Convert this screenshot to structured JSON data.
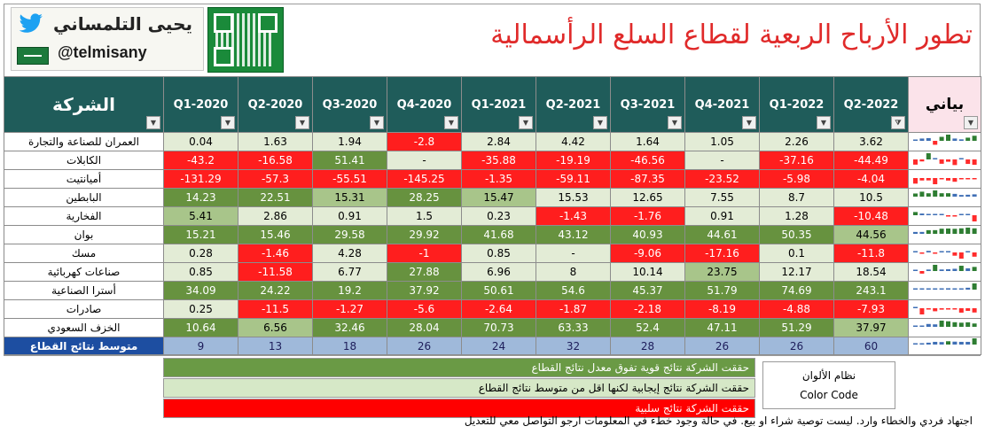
{
  "branding": {
    "author_name": "يحيى التلمساني",
    "handle": "@telmisany"
  },
  "title": "تطور الأرباح الربعية لقطاع السلع الرأسمالية",
  "table": {
    "company_header": "الشركة",
    "chart_header": "بياني",
    "quarters": [
      "Q1-2020",
      "Q2-2020",
      "Q3-2020",
      "Q4-2020",
      "Q1-2021",
      "Q2-2021",
      "Q3-2021",
      "Q4-2021",
      "Q1-2022",
      "Q2-2022"
    ],
    "rows": [
      {
        "name": "العمران للصناعة والتجارة",
        "values": [
          "0.04",
          "1.63",
          "1.94",
          "-2.8",
          "2.84",
          "4.42",
          "1.64",
          "1.05",
          "2.26",
          "3.62"
        ]
      },
      {
        "name": "الكابلات",
        "values": [
          "-43.2",
          "-16.58",
          "51.41",
          "-",
          "-35.88",
          "-19.19",
          "-46.56",
          "-",
          "-37.16",
          "-44.49"
        ]
      },
      {
        "name": "أميانتيت",
        "values": [
          "-131.29",
          "-57.3",
          "-55.51",
          "-145.25",
          "-1.35",
          "-59.11",
          "-87.35",
          "-23.52",
          "-5.98",
          "-4.04"
        ]
      },
      {
        "name": "البابطين",
        "values": [
          "14.23",
          "22.51",
          "15.31",
          "28.25",
          "15.47",
          "15.53",
          "12.65",
          "7.55",
          "8.7",
          "10.5"
        ]
      },
      {
        "name": "الفخارية",
        "values": [
          "5.41",
          "2.86",
          "0.91",
          "1.5",
          "0.23",
          "-1.43",
          "-1.76",
          "0.91",
          "1.28",
          "-10.48"
        ]
      },
      {
        "name": "بوان",
        "values": [
          "15.21",
          "15.46",
          "29.58",
          "29.92",
          "41.68",
          "43.12",
          "40.93",
          "44.61",
          "50.35",
          "44.56"
        ]
      },
      {
        "name": "مسك",
        "values": [
          "0.28",
          "-1.46",
          "4.28",
          "-1",
          "0.85",
          "-",
          "-9.06",
          "-17.16",
          "0.1",
          "-11.8"
        ]
      },
      {
        "name": "صناعات كهربائية",
        "values": [
          "0.85",
          "-11.58",
          "6.77",
          "27.88",
          "6.96",
          "8",
          "10.14",
          "23.75",
          "12.17",
          "18.54"
        ]
      },
      {
        "name": "أسترا الصناعية",
        "values": [
          "34.09",
          "24.22",
          "19.2",
          "37.92",
          "50.61",
          "54.6",
          "45.37",
          "51.79",
          "74.69",
          "243.1"
        ]
      },
      {
        "name": "صادرات",
        "values": [
          "0.25",
          "-11.5",
          "-1.27",
          "-5.6",
          "-2.64",
          "-1.87",
          "-2.18",
          "-8.19",
          "-4.88",
          "-7.93"
        ]
      },
      {
        "name": "الخزف السعودي",
        "values": [
          "10.64",
          "6.56",
          "32.46",
          "28.04",
          "70.73",
          "63.33",
          "52.4",
          "47.11",
          "51.29",
          "37.97"
        ]
      }
    ],
    "average": {
      "name": "متوسط نتائج القطاع",
      "values": [
        "9",
        "13",
        "18",
        "26",
        "24",
        "32",
        "28",
        "26",
        "26",
        "60"
      ]
    }
  },
  "legend": {
    "title_ar": "نظام الألوان",
    "title_en": "Color Code",
    "strong": "حققت الشركة نتائج قوية تفوق معدل نتائج القطاع",
    "positive": "حققت الشركة نتائج إيجابية لكنها اقل من متوسط نتائج القطاع",
    "negative": "حققت الشركة نتائج سلبية"
  },
  "footer": "اجتهاد فردي والخطاء وارد. ليست توصية شراء او بيع. في حالة وجود خطء في المعلومات ارجو التواصل معي للتعديل",
  "colors": {
    "header_bg": "#1f5c5a",
    "strong_green": "#67923f",
    "medium_green": "#a8c58a",
    "light_green": "#e3ecd6",
    "negative_red": "#ff1e1e",
    "title_red": "#e02a2a",
    "average_blue": "#1d4ea1"
  }
}
